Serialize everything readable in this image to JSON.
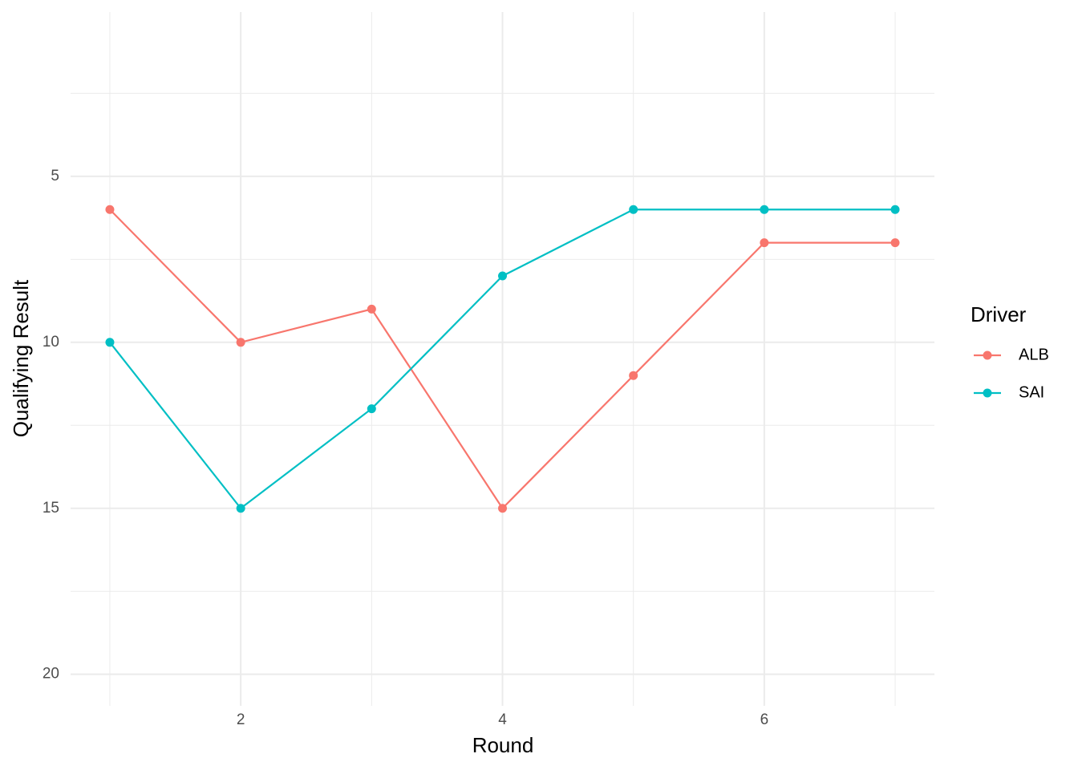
{
  "chart_data": {
    "type": "line",
    "x_label": "Round",
    "y_label": "Qualifying Result",
    "x": [
      1,
      2,
      3,
      4,
      5,
      6,
      7
    ],
    "series": [
      {
        "name": "ALB",
        "color": "#F8766D",
        "values": [
          6,
          10,
          9,
          15,
          11,
          7,
          7
        ]
      },
      {
        "name": "SAI",
        "color": "#00BFC4",
        "values": [
          10,
          15,
          12,
          8,
          6,
          6,
          6
        ]
      }
    ],
    "xlim": [
      0.7,
      7.3
    ],
    "xticks": [
      2,
      4,
      6
    ],
    "x_minor_ticks": [
      1,
      3,
      5,
      7
    ],
    "ylim": [
      0.05,
      20.95
    ],
    "y_reversed": true,
    "yticks": [
      5,
      10,
      15,
      20
    ],
    "y_minor_ticks": [
      2.5,
      7.5,
      12.5,
      17.5
    ],
    "grid": true,
    "legend_title": "Driver",
    "legend_position": "right"
  }
}
